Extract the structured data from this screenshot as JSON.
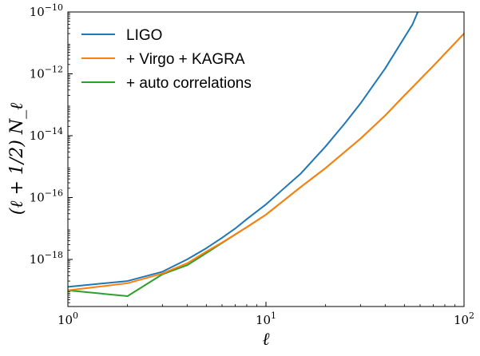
{
  "chart_data": {
    "type": "line",
    "xscale": "log",
    "yscale": "log",
    "xlabel": "ℓ",
    "ylabel": "(ℓ + 1/2) N_ℓ",
    "xlim": [
      1,
      100
    ],
    "ylim": [
      3e-20,
      1e-10
    ],
    "x_ticks": [
      {
        "value": 1,
        "base": "10",
        "exp": "0"
      },
      {
        "value": 10,
        "base": "10",
        "exp": "1"
      },
      {
        "value": 100,
        "base": "10",
        "exp": "2"
      }
    ],
    "y_ticks": [
      {
        "value": 1e-18,
        "base": "10",
        "exp": "−18"
      },
      {
        "value": 1e-16,
        "base": "10",
        "exp": "−16"
      },
      {
        "value": 1e-14,
        "base": "10",
        "exp": "−14"
      },
      {
        "value": 1e-12,
        "base": "10",
        "exp": "−12"
      },
      {
        "value": 1e-10,
        "base": "10",
        "exp": "−10"
      }
    ],
    "grid": false,
    "legend_position": "top-left",
    "series": [
      {
        "name": "LIGO",
        "color": "#1f77b4",
        "x": [
          1,
          2,
          3,
          4,
          5,
          6,
          7,
          8,
          10,
          12,
          15,
          20,
          25,
          30,
          40,
          50,
          55,
          58,
          60,
          61
        ],
        "y": [
          1.3e-19,
          2e-19,
          4e-19,
          1e-18,
          2.3e-18,
          5e-18,
          1e-17,
          2e-17,
          6e-17,
          1.7e-16,
          6e-16,
          4.5e-15,
          2.5e-14,
          1.1e-13,
          1.5e-12,
          1.5e-11,
          4e-11,
          9e-11,
          1.5e-10,
          2.5e-10
        ]
      },
      {
        "name": "+ Virgo + KAGRA",
        "color": "#ff7f0e",
        "x": [
          1,
          2,
          3,
          4,
          5,
          6,
          8,
          10,
          15,
          20,
          30,
          40,
          50,
          70,
          100
        ],
        "y": [
          1e-19,
          1.7e-19,
          3.5e-19,
          7.5e-19,
          1.8e-18,
          3.5e-18,
          1.1e-17,
          2.8e-17,
          2.2e-16,
          9e-16,
          8e-15,
          4.5e-14,
          2e-13,
          1.8e-12,
          2e-11
        ]
      },
      {
        "name": "+ auto correlations",
        "color": "#2ca02c",
        "x": [
          1,
          2,
          3,
          4,
          5,
          6,
          8,
          10,
          15,
          20,
          30,
          40,
          50,
          70,
          100
        ],
        "y": [
          1e-19,
          6.5e-20,
          3.3e-19,
          6.5e-19,
          1.6e-18,
          3.4e-18,
          1.1e-17,
          2.8e-17,
          2.2e-16,
          9e-16,
          8e-15,
          4.5e-14,
          2e-13,
          1.8e-12,
          2e-11
        ]
      }
    ]
  }
}
